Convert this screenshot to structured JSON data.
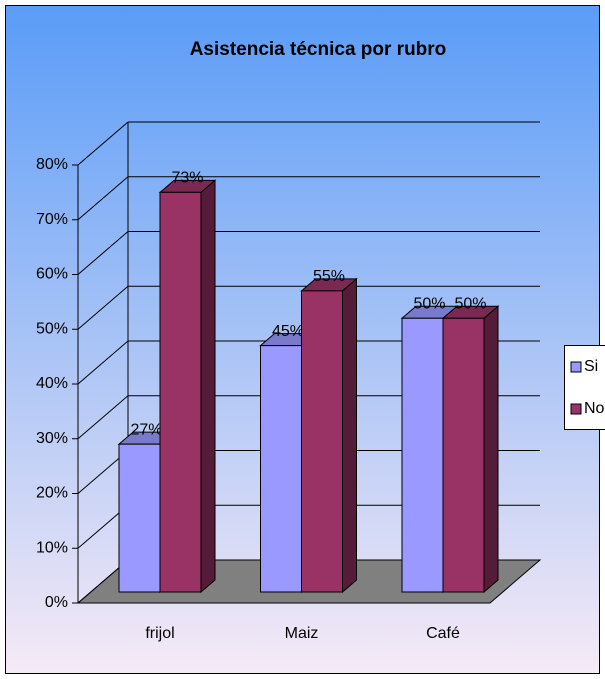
{
  "chart_data": {
    "type": "bar",
    "title": "Asistencia técnica por rubro",
    "categories": [
      "frijol",
      "Maiz",
      "Café"
    ],
    "series": [
      {
        "name": "Si",
        "color": "#9999ff",
        "values": [
          27,
          45,
          50
        ],
        "value_labels": [
          "27%",
          "45%",
          "50%"
        ]
      },
      {
        "name": "No",
        "color": "#993366",
        "values": [
          73,
          55,
          50
        ],
        "value_labels": [
          "73%",
          "55%",
          "50%"
        ]
      }
    ],
    "ylim": [
      0,
      80
    ],
    "yticks": [
      {
        "value": 0,
        "label": "0%"
      },
      {
        "value": 10,
        "label": "10%"
      },
      {
        "value": 20,
        "label": "20%"
      },
      {
        "value": 30,
        "label": "30%"
      },
      {
        "value": 40,
        "label": "40%"
      },
      {
        "value": 50,
        "label": "50%"
      },
      {
        "value": 60,
        "label": "60%"
      },
      {
        "value": 70,
        "label": "70%"
      },
      {
        "value": 80,
        "label": "80%"
      }
    ],
    "grid": true,
    "legend": "right"
  }
}
